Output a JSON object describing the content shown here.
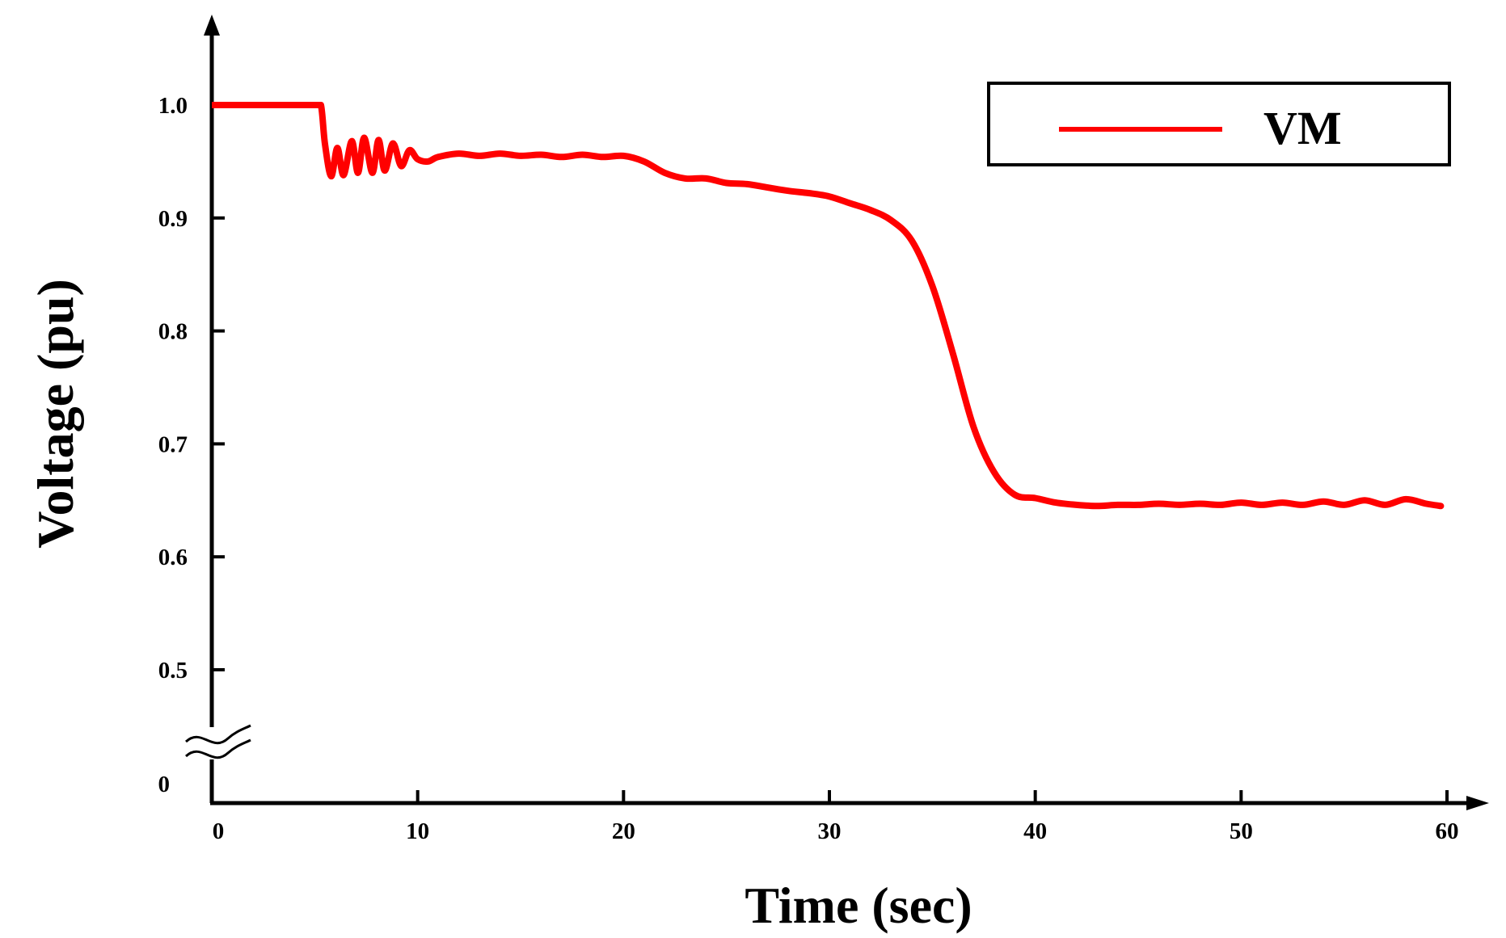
{
  "chart_data": {
    "type": "line",
    "xlabel": "Time (sec)",
    "ylabel": "Voltage (pu)",
    "x_ticks": [
      "0",
      "10",
      "20",
      "30",
      "40",
      "50",
      "60"
    ],
    "y_ticks": [
      "0",
      "0.5",
      "0.6",
      "0.7",
      "0.8",
      "0.9",
      "1.0"
    ],
    "xlim": [
      0,
      60
    ],
    "ylim": [
      0.45,
      1.05
    ],
    "y_axis_break": true,
    "grid": false,
    "legend_position": "top-right",
    "series": [
      {
        "name": "VM",
        "color": "#ff0000",
        "x": [
          0,
          5,
          5.3,
          5.5,
          5.8,
          6.1,
          6.4,
          6.8,
          7.1,
          7.4,
          7.8,
          8.1,
          8.4,
          8.8,
          9.2,
          9.6,
          10,
          10.5,
          11,
          12,
          13,
          14,
          15,
          16,
          17,
          18,
          19,
          20,
          21,
          22,
          23,
          24,
          25,
          26,
          27,
          28,
          29,
          30,
          31,
          32,
          33,
          34,
          35,
          36,
          37,
          38,
          39,
          40,
          41,
          42,
          43,
          44,
          45,
          46,
          47,
          48,
          49,
          50,
          51,
          52,
          53,
          54,
          55,
          56,
          57,
          58,
          59,
          59.7
        ],
        "values": [
          1.0,
          1.0,
          1.0,
          0.965,
          0.937,
          0.962,
          0.938,
          0.968,
          0.94,
          0.971,
          0.94,
          0.969,
          0.942,
          0.966,
          0.946,
          0.96,
          0.952,
          0.95,
          0.954,
          0.957,
          0.955,
          0.957,
          0.955,
          0.956,
          0.954,
          0.956,
          0.954,
          0.955,
          0.95,
          0.94,
          0.935,
          0.935,
          0.931,
          0.93,
          0.927,
          0.924,
          0.922,
          0.919,
          0.913,
          0.907,
          0.898,
          0.88,
          0.84,
          0.78,
          0.715,
          0.675,
          0.655,
          0.652,
          0.648,
          0.646,
          0.645,
          0.646,
          0.646,
          0.647,
          0.646,
          0.647,
          0.646,
          0.648,
          0.646,
          0.648,
          0.646,
          0.649,
          0.646,
          0.65,
          0.646,
          0.651,
          0.647,
          0.645
        ]
      }
    ]
  }
}
